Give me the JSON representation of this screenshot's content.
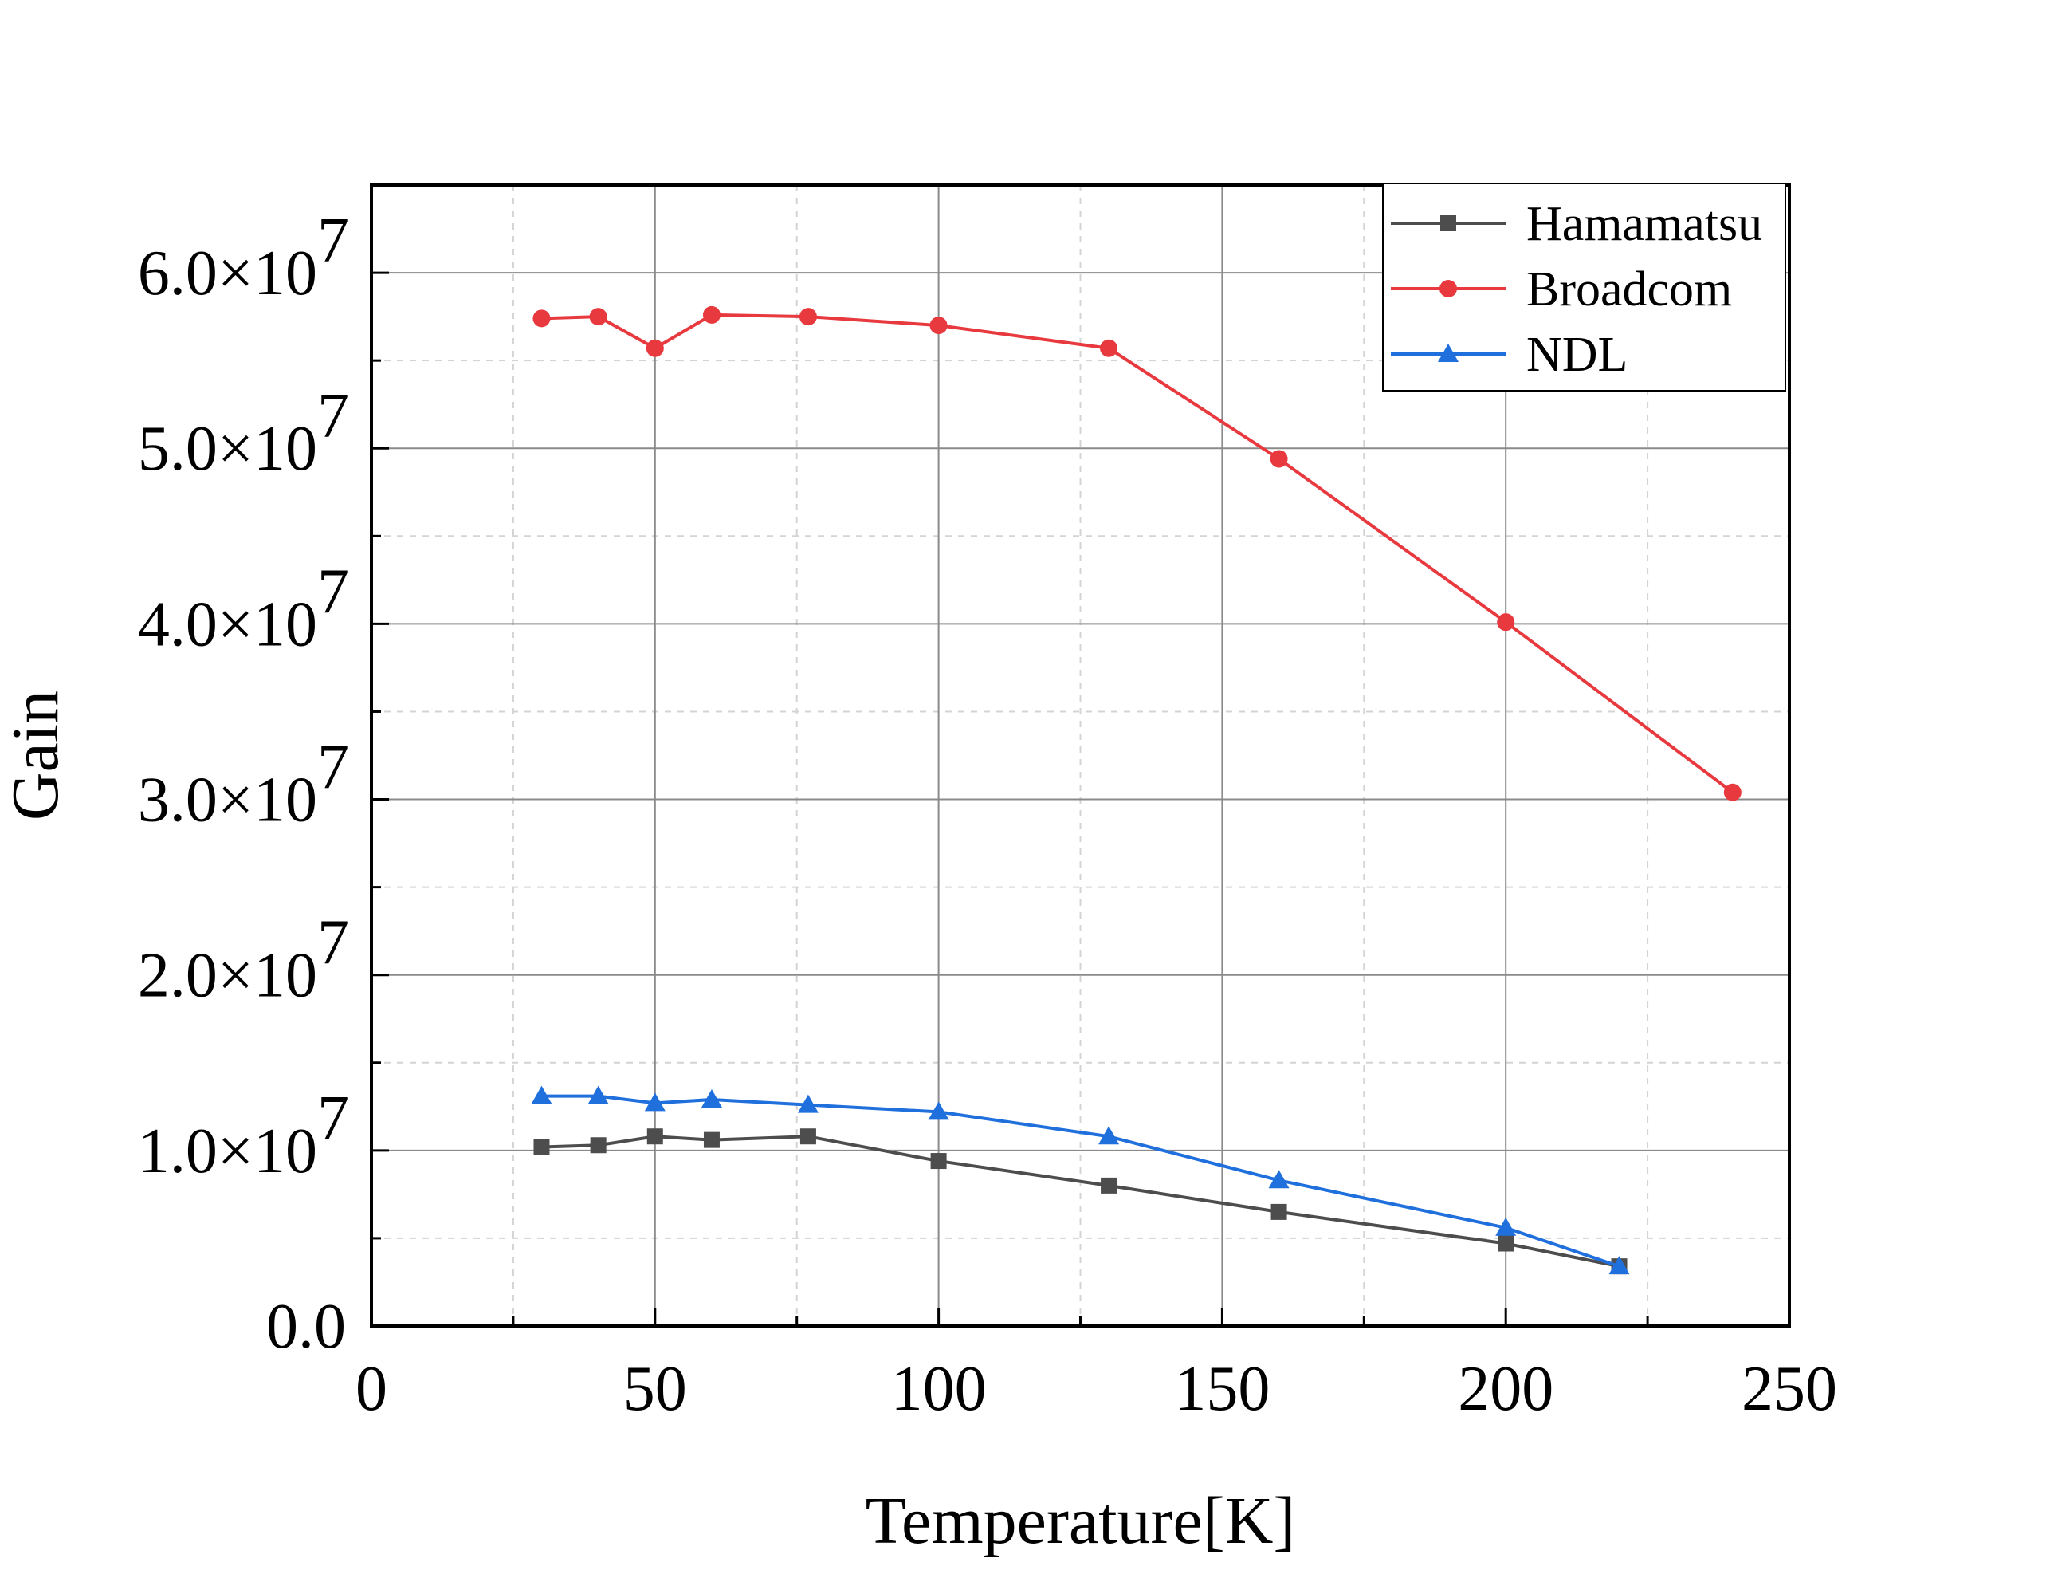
{
  "chart_data": {
    "type": "line",
    "title": "",
    "xlabel": "Temperature[K]",
    "ylabel": "Gain",
    "xlim": [
      0,
      250
    ],
    "ylim": [
      0,
      65000000
    ],
    "x_ticks": [
      0,
      50,
      100,
      150,
      200,
      250
    ],
    "x_tick_labels": [
      "0",
      "50",
      "100",
      "150",
      "200",
      "250"
    ],
    "y_ticks": [
      0,
      10000000,
      20000000,
      30000000,
      40000000,
      50000000,
      60000000
    ],
    "y_tick_labels": [
      {
        "mantissa": "0.0",
        "exponent": ""
      },
      {
        "mantissa": "1.0×10",
        "exponent": "7"
      },
      {
        "mantissa": "2.0×10",
        "exponent": "7"
      },
      {
        "mantissa": "3.0×10",
        "exponent": "7"
      },
      {
        "mantissa": "4.0×10",
        "exponent": "7"
      },
      {
        "mantissa": "5.0×10",
        "exponent": "7"
      },
      {
        "mantissa": "6.0×10",
        "exponent": "7"
      }
    ],
    "grid": true,
    "legend_position": "top-right",
    "series": [
      {
        "name": "Hamamatsu",
        "color": "#4d4d4d",
        "marker": "square",
        "x": [
          30,
          40,
          50,
          60,
          77,
          100,
          130,
          160,
          200,
          220
        ],
        "y": [
          10200000,
          10300000,
          10800000,
          10600000,
          10800000,
          9400000,
          8000000,
          6500000,
          4700000,
          3400000
        ]
      },
      {
        "name": "Broadcom",
        "color": "#e8393f",
        "marker": "circle",
        "x": [
          30,
          40,
          50,
          60,
          77,
          100,
          130,
          160,
          200,
          240
        ],
        "y": [
          57400000,
          57500000,
          55700000,
          57600000,
          57500000,
          57000000,
          55700000,
          49400000,
          40100000,
          30400000
        ]
      },
      {
        "name": "NDL",
        "color": "#1f6fdc",
        "marker": "triangle",
        "x": [
          30,
          40,
          50,
          60,
          77,
          100,
          130,
          160,
          200,
          220
        ],
        "y": [
          13100000,
          13100000,
          12700000,
          12900000,
          12600000,
          12200000,
          10800000,
          8300000,
          5600000,
          3400000
        ]
      }
    ]
  }
}
